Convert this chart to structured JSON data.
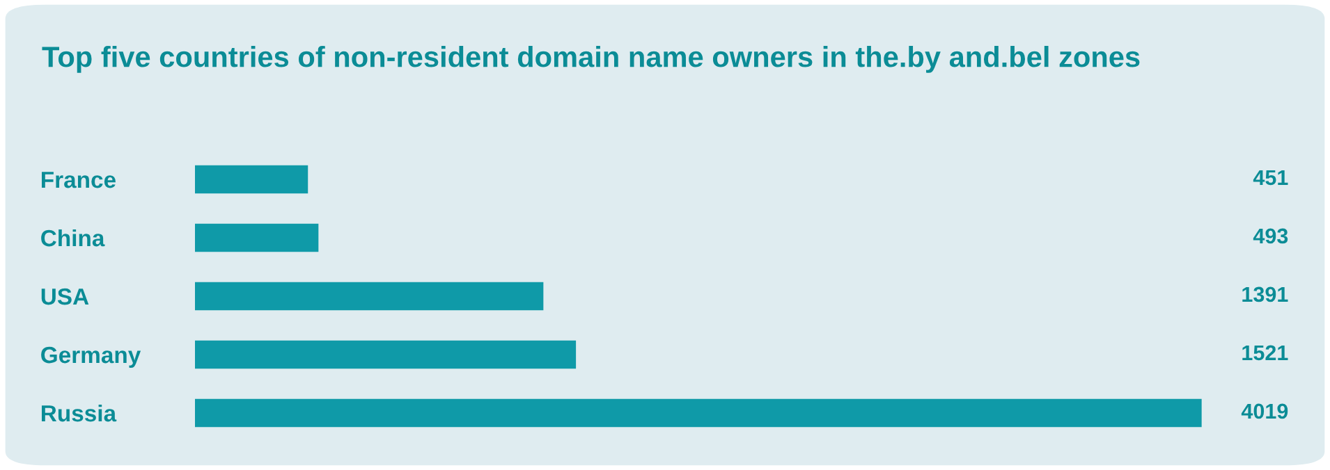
{
  "chart_data": {
    "type": "bar",
    "orientation": "horizontal",
    "title": "Top five countries of non-resident domain name owners in the.by and.bel zones",
    "categories": [
      "France",
      "China",
      "USA",
      "Germany",
      "Russia"
    ],
    "values": [
      451,
      493,
      1391,
      1521,
      4019
    ],
    "color": "#0f9aa8",
    "data_labels": true
  }
}
